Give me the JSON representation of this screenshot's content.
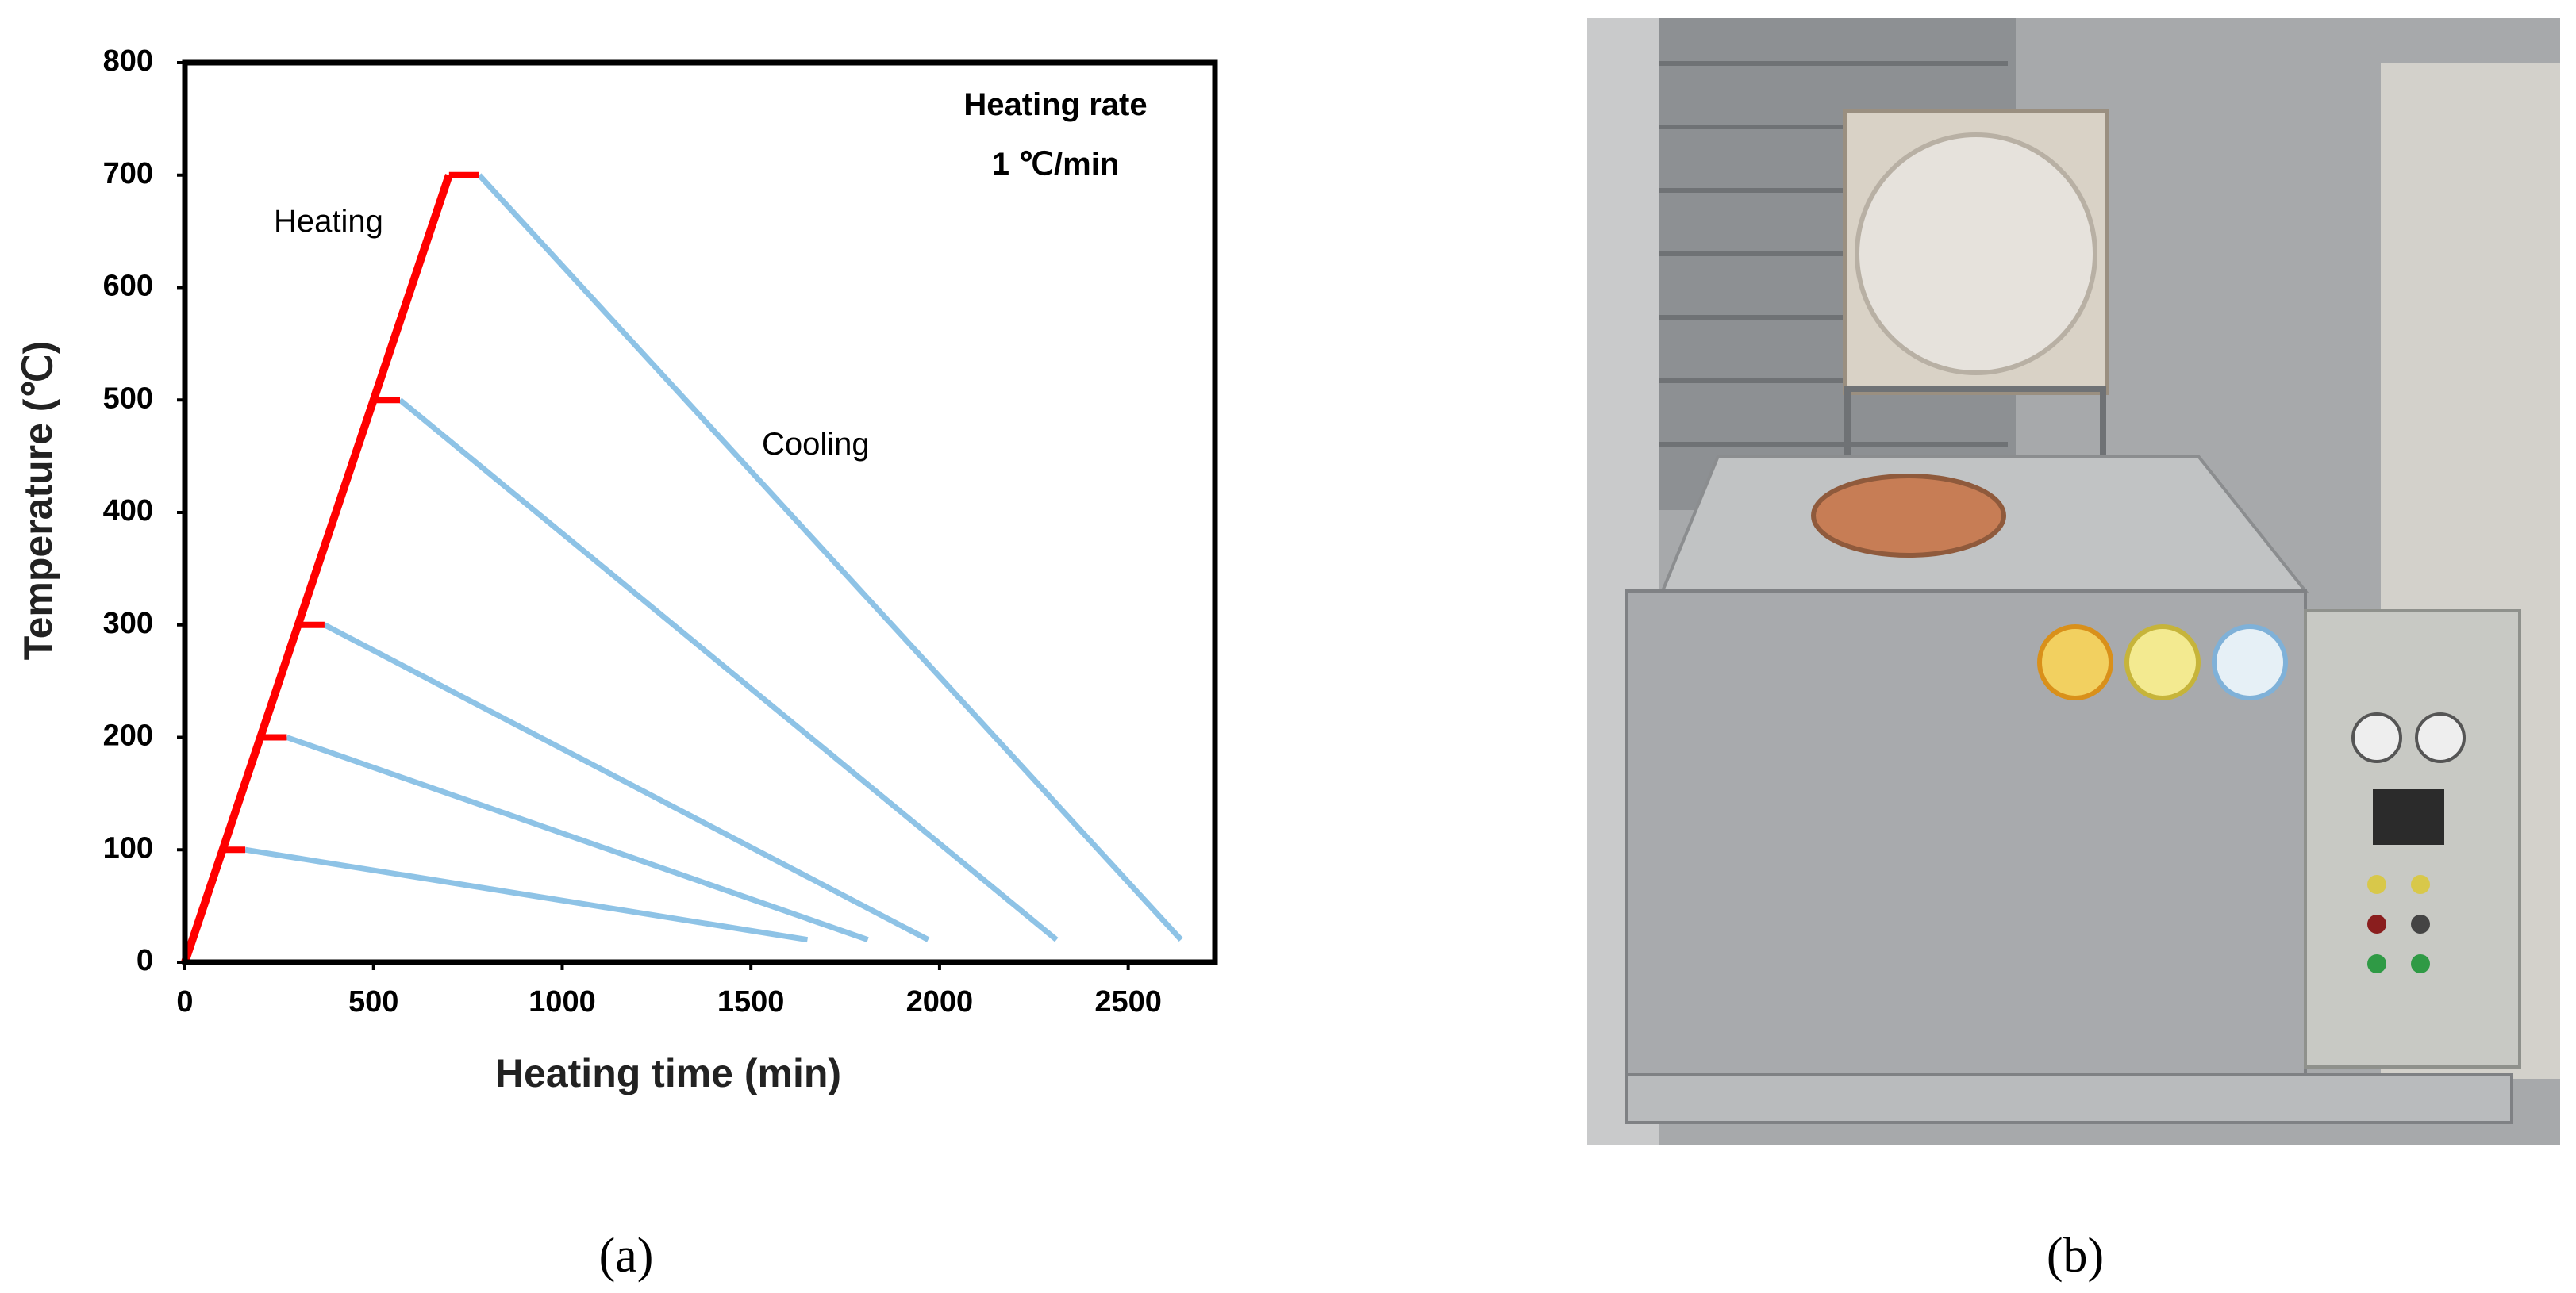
{
  "chart_data": {
    "type": "line",
    "xlabel": "Heating time (min)",
    "ylabel": "Temperature (℃)",
    "annotations": [
      "Heating rate",
      "1 ℃/min"
    ],
    "xlim": [
      0,
      2730
    ],
    "xticks": [
      0,
      500,
      1000,
      1500,
      2000,
      2500
    ],
    "ylim": [
      0,
      800
    ],
    "yticks": [
      0,
      100,
      200,
      300,
      400,
      500,
      600,
      700,
      800
    ],
    "grid": false,
    "heating": {
      "label": "Heating",
      "color": "#ff0000",
      "x": [
        0,
        700
      ],
      "values": [
        0,
        700
      ],
      "holds": [
        {
          "x": [
            100,
            160
          ],
          "values": [
            100,
            100
          ]
        },
        {
          "x": [
            200,
            270
          ],
          "values": [
            200,
            200
          ]
        },
        {
          "x": [
            300,
            370
          ],
          "values": [
            300,
            300
          ]
        },
        {
          "x": [
            500,
            570
          ],
          "values": [
            500,
            500
          ]
        },
        {
          "x": [
            700,
            780
          ],
          "values": [
            700,
            700
          ]
        }
      ]
    },
    "cooling": {
      "label": "Cooling",
      "color": "#8ec3e6",
      "lines": [
        {
          "x": [
            160,
            1650
          ],
          "values": [
            100,
            20
          ]
        },
        {
          "x": [
            270,
            1810
          ],
          "values": [
            200,
            20
          ]
        },
        {
          "x": [
            370,
            1970
          ],
          "values": [
            300,
            20
          ]
        },
        {
          "x": [
            570,
            2310
          ],
          "values": [
            500,
            20
          ]
        },
        {
          "x": [
            780,
            2640
          ],
          "values": [
            700,
            20
          ]
        }
      ]
    }
  },
  "captions": [
    "(a)",
    "(b)"
  ]
}
